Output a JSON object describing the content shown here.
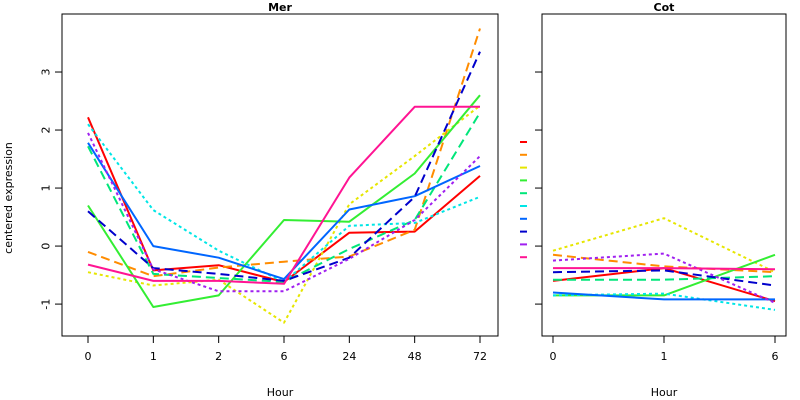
{
  "chart_data": [
    {
      "type": "line",
      "title": "Mer",
      "xlabel": "Hour",
      "ylabel": "centered expression",
      "categories": [
        "0",
        "1",
        "2",
        "6",
        "24",
        "48",
        "72"
      ],
      "ylim": [
        -1.55,
        4.0
      ],
      "yticks": [
        -1,
        0,
        1,
        2,
        3
      ],
      "series": [
        {
          "color": "#ff0000",
          "dash": "solid",
          "values": [
            2.22,
            -0.42,
            -0.33,
            -0.62,
            0.23,
            0.25,
            1.21
          ]
        },
        {
          "color": "#ff8c00",
          "dash": "dashed",
          "values": [
            -0.1,
            -0.52,
            -0.37,
            -0.27,
            -0.18,
            0.28,
            3.75
          ]
        },
        {
          "color": "#e6e600",
          "dash": "dotted",
          "values": [
            -0.45,
            -0.68,
            -0.58,
            -1.32,
            0.72,
            1.55,
            2.42
          ]
        },
        {
          "color": "#33ee33",
          "dash": "solid",
          "values": [
            0.7,
            -1.05,
            -0.85,
            0.45,
            0.42,
            1.25,
            2.6
          ]
        },
        {
          "color": "#00e67a",
          "dash": "dashed",
          "values": [
            1.72,
            -0.48,
            -0.55,
            -0.62,
            -0.05,
            0.45,
            2.3
          ]
        },
        {
          "color": "#00e6e6",
          "dash": "dotted",
          "values": [
            2.1,
            0.62,
            -0.08,
            -0.62,
            0.35,
            0.4,
            0.85
          ]
        },
        {
          "color": "#0066ff",
          "dash": "solid",
          "values": [
            1.78,
            0.0,
            -0.2,
            -0.57,
            0.63,
            0.86,
            1.38
          ]
        },
        {
          "color": "#0000cc",
          "dash": "dashed",
          "values": [
            0.6,
            -0.38,
            -0.48,
            -0.6,
            -0.2,
            0.85,
            3.35
          ]
        },
        {
          "color": "#a020f0",
          "dash": "dotted",
          "values": [
            1.95,
            -0.4,
            -0.78,
            -0.78,
            -0.22,
            0.45,
            1.55
          ]
        },
        {
          "color": "#ff1493",
          "dash": "solid",
          "values": [
            -0.32,
            -0.6,
            -0.6,
            -0.65,
            1.18,
            2.4,
            2.4
          ]
        }
      ]
    },
    {
      "type": "line",
      "title": "Cot",
      "xlabel": "Hour",
      "ylabel": "",
      "categories": [
        "0",
        "1",
        "6"
      ],
      "ylim": [
        -1.55,
        4.0
      ],
      "series": [
        {
          "color": "#ff0000",
          "dash": "solid",
          "values": [
            -0.6,
            -0.38,
            -0.95
          ]
        },
        {
          "color": "#ff8c00",
          "dash": "dashed",
          "values": [
            -0.15,
            -0.35,
            -0.45
          ]
        },
        {
          "color": "#e6e600",
          "dash": "dotted",
          "values": [
            -0.08,
            0.48,
            -0.45
          ]
        },
        {
          "color": "#33ee33",
          "dash": "solid",
          "values": [
            -0.85,
            -0.85,
            -0.15
          ]
        },
        {
          "color": "#00e67a",
          "dash": "dashed",
          "values": [
            -0.58,
            -0.58,
            -0.52
          ]
        },
        {
          "color": "#00e6e6",
          "dash": "dotted",
          "values": [
            -0.85,
            -0.82,
            -1.1
          ]
        },
        {
          "color": "#0066ff",
          "dash": "solid",
          "values": [
            -0.8,
            -0.92,
            -0.92
          ]
        },
        {
          "color": "#0000cc",
          "dash": "dashed",
          "values": [
            -0.45,
            -0.42,
            -0.68
          ]
        },
        {
          "color": "#a020f0",
          "dash": "dotted",
          "values": [
            -0.25,
            -0.13,
            -0.98
          ]
        },
        {
          "color": "#ff1493",
          "dash": "solid",
          "values": [
            -0.38,
            -0.38,
            -0.4
          ]
        }
      ]
    }
  ]
}
